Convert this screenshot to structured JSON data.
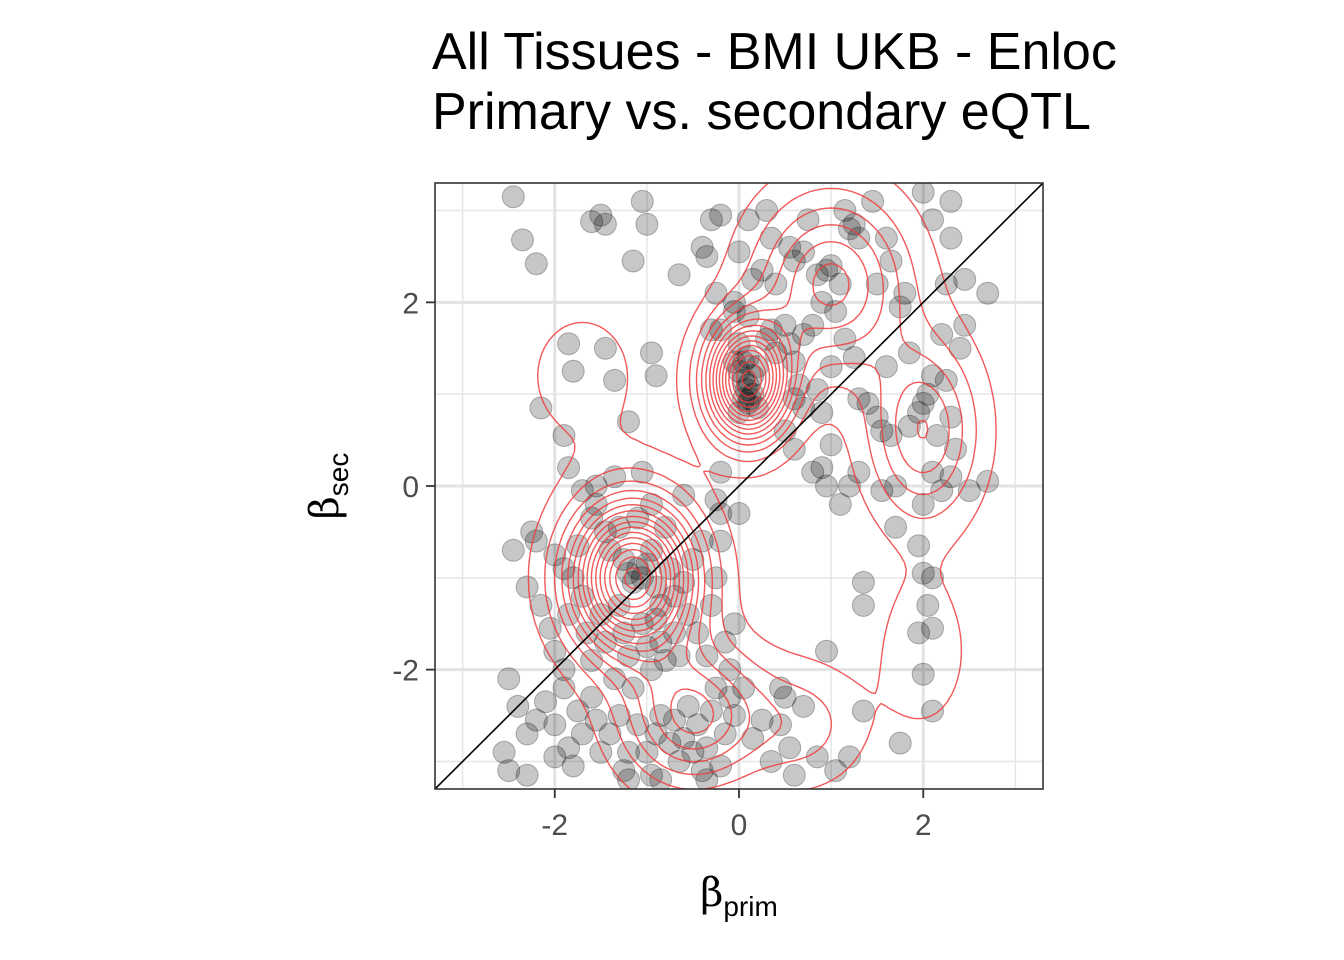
{
  "chart_title": {
    "line1": "All Tissues - BMI UKB - Enloc",
    "line2": "Primary vs. secondary eQTL"
  },
  "axes": {
    "x_symbol": "β",
    "x_subscript": "prim",
    "y_symbol": "β",
    "y_subscript": "sec"
  },
  "colors": {
    "points": "#000000",
    "contours": "#f03c3c",
    "identity_line": "#000000",
    "grid": "#e6e6e6",
    "panel_border": "#333333"
  },
  "chart_data": {
    "type": "scatter",
    "overlays": [
      "2d-density-contours",
      "identity-line y=x"
    ],
    "xlim": [
      -3.3,
      3.3
    ],
    "ylim": [
      -3.3,
      3.3
    ],
    "x_ticks": [
      -2,
      0,
      2
    ],
    "y_ticks": [
      -2,
      0,
      2
    ],
    "x_tick_labels": [
      "-2",
      "0",
      "2"
    ],
    "y_tick_labels": [
      "-2",
      "0",
      "2"
    ],
    "grid": true,
    "legend": "none",
    "density_peaks": [
      {
        "x": 0.1,
        "y": 1.15,
        "sx": 0.3,
        "sy": 0.42,
        "w": 1.1
      },
      {
        "x": -1.15,
        "y": -1.0,
        "sx": 0.45,
        "sy": 0.55,
        "w": 1.2
      },
      {
        "x": -0.5,
        "y": -2.5,
        "sx": 0.5,
        "sy": 0.5,
        "w": 0.45
      },
      {
        "x": 1.0,
        "y": 2.2,
        "sx": 0.55,
        "sy": 0.65,
        "w": 0.45
      },
      {
        "x": 2.0,
        "y": 0.6,
        "sx": 0.4,
        "sy": 0.65,
        "w": 0.35
      },
      {
        "x": -1.7,
        "y": 1.2,
        "sx": 0.5,
        "sy": 0.6,
        "w": 0.08
      },
      {
        "x": 2.0,
        "y": -1.8,
        "sx": 0.35,
        "sy": 0.6,
        "w": 0.1
      },
      {
        "x": 0.7,
        "y": -2.6,
        "sx": 0.45,
        "sy": 0.45,
        "w": 0.15
      }
    ],
    "points": [
      [
        -2.35,
        2.68
      ],
      [
        -2.2,
        2.42
      ],
      [
        -1.5,
        2.95
      ],
      [
        -1.45,
        2.85
      ],
      [
        -1.6,
        2.88
      ],
      [
        -1.05,
        3.1
      ],
      [
        -1.0,
        2.85
      ],
      [
        -1.15,
        2.45
      ],
      [
        -0.65,
        2.3
      ],
      [
        -0.4,
        2.6
      ],
      [
        -0.35,
        2.5
      ],
      [
        -0.3,
        2.9
      ],
      [
        -0.2,
        2.95
      ],
      [
        -0.25,
        2.1
      ],
      [
        -0.05,
        2.0
      ],
      [
        -0.2,
        1.7
      ],
      [
        -0.05,
        1.9
      ],
      [
        0.1,
        1.85
      ],
      [
        0.0,
        2.55
      ],
      [
        0.15,
        2.25
      ],
      [
        0.25,
        2.35
      ],
      [
        0.1,
        2.9
      ],
      [
        0.3,
        3.0
      ],
      [
        0.35,
        2.7
      ],
      [
        0.4,
        2.2
      ],
      [
        0.55,
        2.6
      ],
      [
        0.6,
        2.45
      ],
      [
        0.7,
        2.55
      ],
      [
        0.75,
        2.9
      ],
      [
        0.85,
        2.3
      ],
      [
        0.9,
        2.0
      ],
      [
        0.95,
        2.35
      ],
      [
        1.0,
        2.4
      ],
      [
        1.1,
        2.2
      ],
      [
        1.05,
        1.9
      ],
      [
        1.2,
        2.8
      ],
      [
        1.15,
        3.0
      ],
      [
        1.25,
        2.85
      ],
      [
        1.3,
        2.7
      ],
      [
        1.45,
        3.1
      ],
      [
        1.6,
        2.7
      ],
      [
        1.5,
        2.2
      ],
      [
        1.65,
        2.45
      ],
      [
        1.8,
        2.1
      ],
      [
        2.0,
        3.2
      ],
      [
        2.1,
        2.9
      ],
      [
        2.3,
        2.7
      ],
      [
        2.25,
        2.2
      ],
      [
        2.45,
        2.25
      ],
      [
        2.7,
        2.1
      ],
      [
        1.6,
        1.3
      ],
      [
        1.75,
        1.95
      ],
      [
        -0.3,
        1.7
      ],
      [
        0.0,
        1.55
      ],
      [
        0.1,
        1.4
      ],
      [
        0.2,
        1.3
      ],
      [
        0.0,
        1.25
      ],
      [
        0.05,
        1.15
      ],
      [
        0.1,
        1.1
      ],
      [
        0.15,
        1.0
      ],
      [
        0.05,
        0.95
      ],
      [
        0.1,
        0.9
      ],
      [
        0.2,
        0.85
      ],
      [
        0.0,
        0.8
      ],
      [
        0.05,
        1.35
      ],
      [
        0.15,
        1.2
      ],
      [
        0.12,
        0.95
      ],
      [
        0.08,
        1.05
      ],
      [
        -0.05,
        1.35
      ],
      [
        0.3,
        1.6
      ],
      [
        0.35,
        1.7
      ],
      [
        0.5,
        1.75
      ],
      [
        0.55,
        1.55
      ],
      [
        0.7,
        1.65
      ],
      [
        0.8,
        1.75
      ],
      [
        0.6,
        1.35
      ],
      [
        0.4,
        1.45
      ],
      [
        0.65,
        1.1
      ],
      [
        0.7,
        0.85
      ],
      [
        0.6,
        0.95
      ],
      [
        0.85,
        1.05
      ],
      [
        0.9,
        0.8
      ],
      [
        1.0,
        1.3
      ],
      [
        1.15,
        1.6
      ],
      [
        1.25,
        1.4
      ],
      [
        1.3,
        0.95
      ],
      [
        1.4,
        0.9
      ],
      [
        1.5,
        0.75
      ],
      [
        1.55,
        0.6
      ],
      [
        1.65,
        0.55
      ],
      [
        1.85,
        0.65
      ],
      [
        1.95,
        0.8
      ],
      [
        2.0,
        0.9
      ],
      [
        2.05,
        1.0
      ],
      [
        2.1,
        1.2
      ],
      [
        2.15,
        0.55
      ],
      [
        2.25,
        1.15
      ],
      [
        2.3,
        0.75
      ],
      [
        2.35,
        0.4
      ],
      [
        2.4,
        1.5
      ],
      [
        2.45,
        1.75
      ],
      [
        2.2,
        1.65
      ],
      [
        1.85,
        1.45
      ],
      [
        2.1,
        0.15
      ],
      [
        2.2,
        -0.05
      ],
      [
        2.5,
        -0.05
      ],
      [
        2.7,
        0.05
      ],
      [
        2.3,
        0.1
      ],
      [
        2.0,
        -0.2
      ],
      [
        1.7,
        0.0
      ],
      [
        1.55,
        -0.05
      ],
      [
        1.3,
        0.15
      ],
      [
        1.2,
        0.0
      ],
      [
        1.1,
        -0.2
      ],
      [
        0.95,
        0.0
      ],
      [
        0.9,
        0.2
      ],
      [
        0.6,
        0.4
      ],
      [
        0.5,
        0.6
      ],
      [
        1.0,
        0.45
      ],
      [
        0.8,
        0.15
      ],
      [
        1.7,
        -0.45
      ],
      [
        1.95,
        -0.65
      ],
      [
        2.0,
        -0.95
      ],
      [
        2.1,
        -1.0
      ],
      [
        2.05,
        -1.3
      ],
      [
        1.95,
        -1.6
      ],
      [
        2.1,
        -1.55
      ],
      [
        2.0,
        -2.05
      ],
      [
        2.1,
        -2.45
      ],
      [
        1.75,
        -2.8
      ],
      [
        1.35,
        -2.45
      ],
      [
        1.35,
        -1.3
      ],
      [
        1.35,
        -1.05
      ],
      [
        0.95,
        -1.8
      ],
      [
        0.45,
        -2.2
      ],
      [
        0.5,
        -2.3
      ],
      [
        -0.2,
        0.15
      ],
      [
        -0.25,
        -0.15
      ],
      [
        -0.2,
        -0.3
      ],
      [
        -2.15,
        0.85
      ],
      [
        -1.9,
        0.55
      ],
      [
        -1.85,
        1.55
      ],
      [
        -1.8,
        1.25
      ],
      [
        -1.45,
        1.5
      ],
      [
        -1.35,
        1.15
      ],
      [
        -1.2,
        0.7
      ],
      [
        -0.95,
        1.45
      ],
      [
        -0.9,
        1.2
      ],
      [
        -2.45,
        -0.7
      ],
      [
        -2.2,
        -0.6
      ],
      [
        -2.0,
        -0.75
      ],
      [
        -1.9,
        -0.9
      ],
      [
        -1.8,
        -1.0
      ],
      [
        -1.75,
        -0.65
      ],
      [
        -1.6,
        -0.35
      ],
      [
        -1.55,
        -0.2
      ],
      [
        -1.45,
        -0.5
      ],
      [
        -1.4,
        -0.7
      ],
      [
        -1.3,
        -0.45
      ],
      [
        -1.25,
        -0.8
      ],
      [
        -1.2,
        -0.95
      ],
      [
        -1.15,
        -1.05
      ],
      [
        -1.1,
        -0.9
      ],
      [
        -1.05,
        -1.0
      ],
      [
        -1.0,
        -0.85
      ],
      [
        -0.95,
        -0.7
      ],
      [
        -0.9,
        -1.1
      ],
      [
        -0.85,
        -1.3
      ],
      [
        -0.8,
        -0.45
      ],
      [
        -0.75,
        -0.9
      ],
      [
        -0.7,
        -1.2
      ],
      [
        -0.6,
        -1.05
      ],
      [
        -0.55,
        -1.4
      ],
      [
        -0.5,
        -0.8
      ],
      [
        -0.45,
        -1.6
      ],
      [
        -0.4,
        -0.6
      ],
      [
        -0.35,
        -1.85
      ],
      [
        -0.3,
        -1.3
      ],
      [
        -0.25,
        -1.0
      ],
      [
        -0.2,
        -0.6
      ],
      [
        -0.15,
        -1.7
      ],
      [
        -0.1,
        -2.0
      ],
      [
        -0.05,
        -1.5
      ],
      [
        0.0,
        -0.3
      ],
      [
        -2.3,
        -1.1
      ],
      [
        -2.15,
        -1.3
      ],
      [
        -2.05,
        -1.55
      ],
      [
        -2.0,
        -1.8
      ],
      [
        -1.9,
        -2.0
      ],
      [
        -1.85,
        -1.4
      ],
      [
        -1.7,
        -1.2
      ],
      [
        -1.65,
        -1.6
      ],
      [
        -1.6,
        -1.9
      ],
      [
        -1.5,
        -1.4
      ],
      [
        -1.45,
        -1.7
      ],
      [
        -1.35,
        -2.1
      ],
      [
        -1.3,
        -1.3
      ],
      [
        -1.25,
        -1.6
      ],
      [
        -1.2,
        -1.85
      ],
      [
        -1.15,
        -2.2
      ],
      [
        -1.05,
        -1.5
      ],
      [
        -1.0,
        -1.75
      ],
      [
        -0.95,
        -2.0
      ],
      [
        -0.9,
        -1.45
      ],
      [
        -0.85,
        -1.7
      ],
      [
        -0.8,
        -1.9
      ],
      [
        -0.7,
        -1.6
      ],
      [
        -0.65,
        -1.85
      ],
      [
        -2.5,
        -2.1
      ],
      [
        -2.4,
        -2.4
      ],
      [
        -2.3,
        -2.7
      ],
      [
        -2.2,
        -2.55
      ],
      [
        -2.1,
        -2.35
      ],
      [
        -2.0,
        -2.6
      ],
      [
        -1.9,
        -2.2
      ],
      [
        -1.85,
        -2.85
      ],
      [
        -1.8,
        -3.05
      ],
      [
        -1.75,
        -2.45
      ],
      [
        -1.7,
        -2.7
      ],
      [
        -1.6,
        -2.3
      ],
      [
        -1.55,
        -2.55
      ],
      [
        -1.5,
        -2.9
      ],
      [
        -1.4,
        -2.7
      ],
      [
        -1.3,
        -2.5
      ],
      [
        -1.25,
        -3.1
      ],
      [
        -1.2,
        -2.9
      ],
      [
        -1.1,
        -2.6
      ],
      [
        -1.0,
        -2.9
      ],
      [
        -0.95,
        -3.15
      ],
      [
        -0.9,
        -2.7
      ],
      [
        -0.85,
        -2.5
      ],
      [
        -0.75,
        -2.8
      ],
      [
        -0.7,
        -2.55
      ],
      [
        -0.65,
        -3.0
      ],
      [
        -0.6,
        -2.75
      ],
      [
        -0.55,
        -2.4
      ],
      [
        -0.5,
        -2.9
      ],
      [
        -0.45,
        -2.6
      ],
      [
        -0.4,
        -3.1
      ],
      [
        -0.35,
        -2.85
      ],
      [
        -0.3,
        -2.45
      ],
      [
        -0.25,
        -2.2
      ],
      [
        -0.2,
        -3.05
      ],
      [
        -0.15,
        -2.7
      ],
      [
        -0.1,
        -2.3
      ],
      [
        -0.05,
        -2.5
      ],
      [
        0.05,
        -2.2
      ],
      [
        0.15,
        -2.75
      ],
      [
        0.25,
        -2.55
      ],
      [
        0.35,
        -3.0
      ],
      [
        0.45,
        -2.6
      ],
      [
        0.55,
        -2.85
      ],
      [
        0.7,
        -2.4
      ],
      [
        0.85,
        -2.95
      ],
      [
        1.05,
        -3.1
      ],
      [
        1.2,
        -2.95
      ],
      [
        -2.55,
        -2.9
      ],
      [
        -2.5,
        -3.1
      ],
      [
        -2.0,
        -2.95
      ],
      [
        -1.2,
        -3.2
      ],
      [
        -0.85,
        -3.2
      ],
      [
        -0.35,
        -3.2
      ],
      [
        0.6,
        -3.15
      ],
      [
        -2.45,
        3.15
      ],
      [
        2.3,
        3.1
      ],
      [
        -2.3,
        -3.15
      ],
      [
        -1.05,
        0.15
      ],
      [
        -0.95,
        -0.2
      ],
      [
        -0.6,
        -0.1
      ],
      [
        -1.7,
        -0.05
      ],
      [
        -2.25,
        -0.5
      ],
      [
        -1.35,
        0.1
      ],
      [
        -1.85,
        0.2
      ],
      [
        -1.55,
        0.0
      ],
      [
        -1.1,
        -0.35
      ]
    ]
  }
}
